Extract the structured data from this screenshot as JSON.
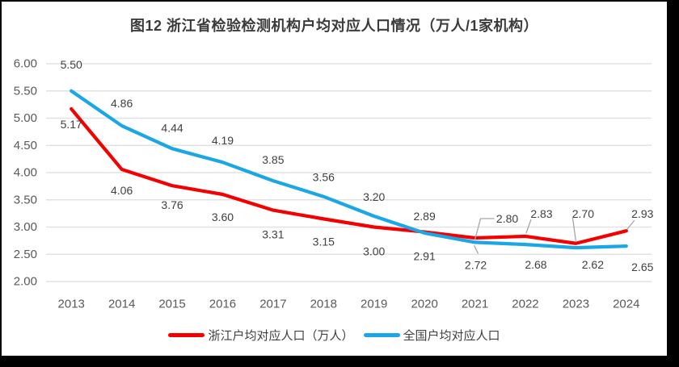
{
  "figure": {
    "frame_color": "#000000",
    "background": "#FFFFFF"
  },
  "chart_data": {
    "type": "line",
    "title": "图12 浙江省检验检测机构户均对应人口情况（万人/1家机构）",
    "categories": [
      "2013",
      "2014",
      "2015",
      "2016",
      "2017",
      "2018",
      "2019",
      "2020",
      "2021",
      "2022",
      "2023",
      "2024"
    ],
    "series": [
      {
        "id": "zhejiang",
        "name": "浙江户均对应人口（万人）",
        "color": "#F40000",
        "values": [
          5.17,
          4.06,
          3.76,
          3.6,
          3.31,
          3.15,
          3.0,
          2.91,
          2.8,
          2.83,
          2.7,
          2.93
        ],
        "labels": [
          "5.17",
          "4.06",
          "3.76",
          "3.60",
          "3.31",
          "3.15",
          "3.00",
          "2.91",
          "2.80",
          "2.83",
          "2.70",
          "2.93"
        ],
        "label_offsets": [
          [
            0,
            19
          ],
          [
            0,
            26
          ],
          [
            0,
            24
          ],
          [
            0,
            28
          ],
          [
            0,
            30
          ],
          [
            0,
            28
          ],
          [
            0,
            30
          ],
          [
            0,
            30
          ],
          [
            40,
            -24
          ],
          [
            20,
            -28
          ],
          [
            9,
            -37
          ],
          [
            20,
            -21
          ]
        ],
        "leader_lines": {
          "8": [
            [
              24,
              -24
            ],
            [
              7,
              -24
            ],
            [
              0,
              2
            ]
          ],
          "9": [
            [
              7,
              -21
            ],
            [
              1,
              -4
            ]
          ],
          "10": [
            [
              -4,
              -32
            ],
            [
              0,
              -3
            ]
          ],
          "11": [
            [
              10,
              -13
            ],
            [
              1,
              -2
            ]
          ]
        }
      },
      {
        "id": "national",
        "name": "全国户均对应人口",
        "color": "#1BA7E5",
        "values": [
          5.5,
          4.86,
          4.44,
          4.19,
          3.85,
          3.56,
          3.2,
          2.89,
          2.72,
          2.68,
          2.62,
          2.65
        ],
        "labels": [
          "5.50",
          "4.86",
          "4.44",
          "4.19",
          "3.85",
          "3.56",
          "3.20",
          "2.89",
          "2.72",
          "2.68",
          "2.62",
          "2.65"
        ],
        "label_offsets": [
          [
            0,
            -33
          ],
          [
            0,
            -28
          ],
          [
            0,
            -26
          ],
          [
            0,
            -27
          ],
          [
            0,
            -26
          ],
          [
            0,
            -24
          ],
          [
            0,
            -24
          ],
          [
            0,
            -21
          ],
          [
            1,
            28
          ],
          [
            13,
            25
          ],
          [
            21,
            21
          ],
          [
            20,
            26
          ]
        ],
        "leader_lines": {
          "8": [
            [
              -1,
              4
            ],
            [
              4,
              14
            ]
          ]
        }
      }
    ],
    "ylim": [
      2.0,
      6.0
    ],
    "ytick_step": 0.5,
    "ytick_labels_top_to_bottom": [
      "6.00",
      "5.50",
      "5.00",
      "4.50",
      "4.00",
      "3.50",
      "3.00",
      "2.50",
      "2.00"
    ],
    "grid": true,
    "legend_position": "bottom",
    "colors": {
      "gridline": "#E2E2E2",
      "axis_text": "#595959",
      "data_label": "#404040",
      "leader_line": "#A6A6A6",
      "title_text": "#3B3B3B",
      "legend_text": "#404040"
    }
  }
}
